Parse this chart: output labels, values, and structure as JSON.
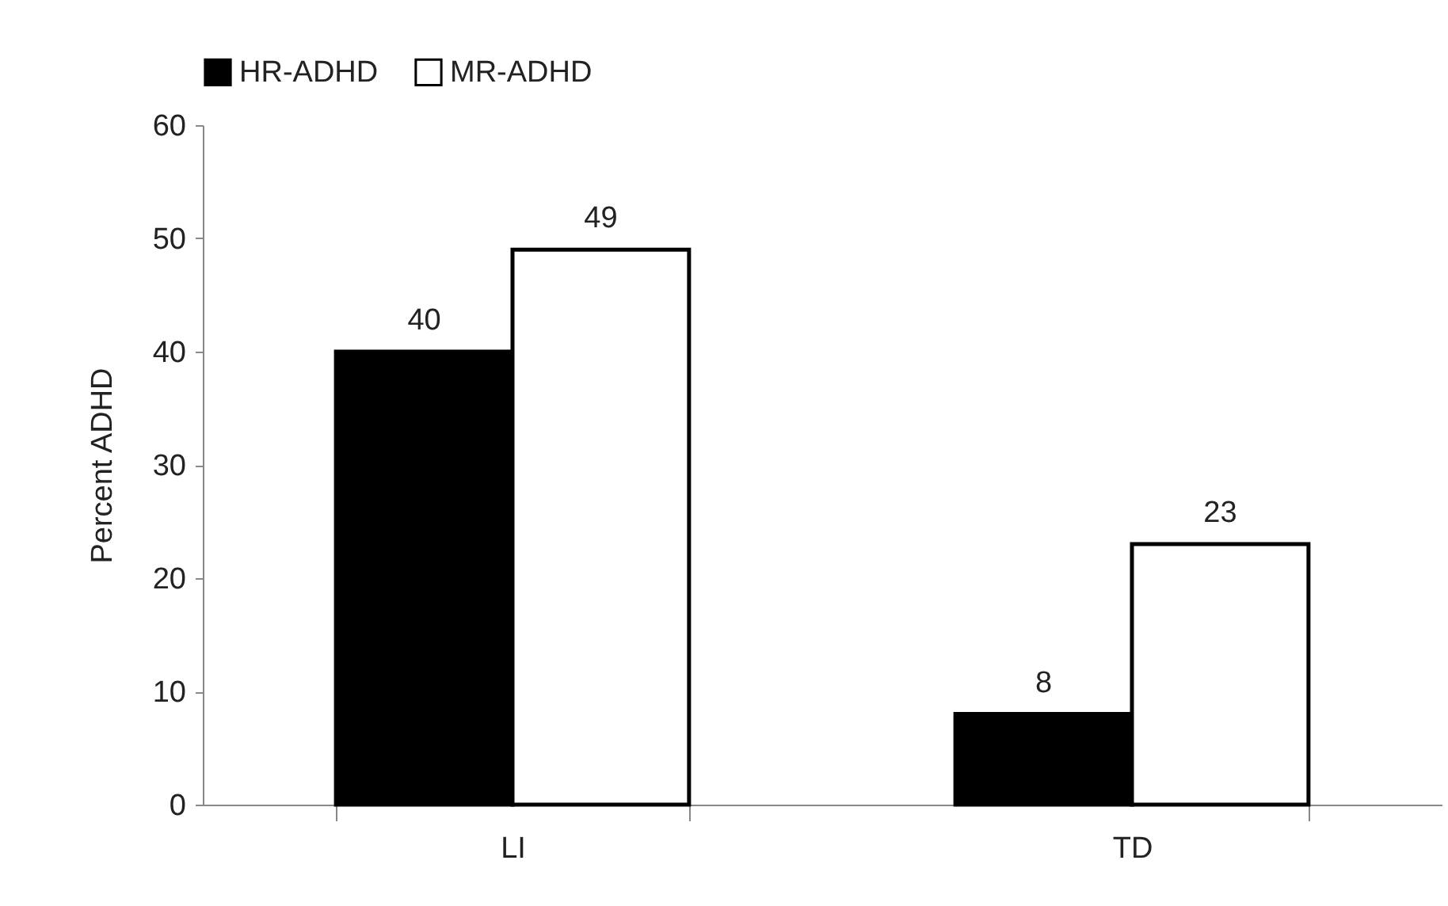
{
  "chart_data": {
    "type": "bar",
    "ylabel": "Percent ADHD",
    "categories": [
      "LI",
      "TD"
    ],
    "series": [
      {
        "name": "HR-ADHD",
        "color": "#000000",
        "values": [
          40,
          8
        ]
      },
      {
        "name": "MR-ADHD",
        "color": "#ffffff",
        "values": [
          49,
          23
        ]
      }
    ],
    "ylim": [
      0,
      60
    ],
    "yticks": [
      0,
      10,
      20,
      30,
      40,
      50,
      60
    ],
    "data_labels": true,
    "legend": "top"
  }
}
